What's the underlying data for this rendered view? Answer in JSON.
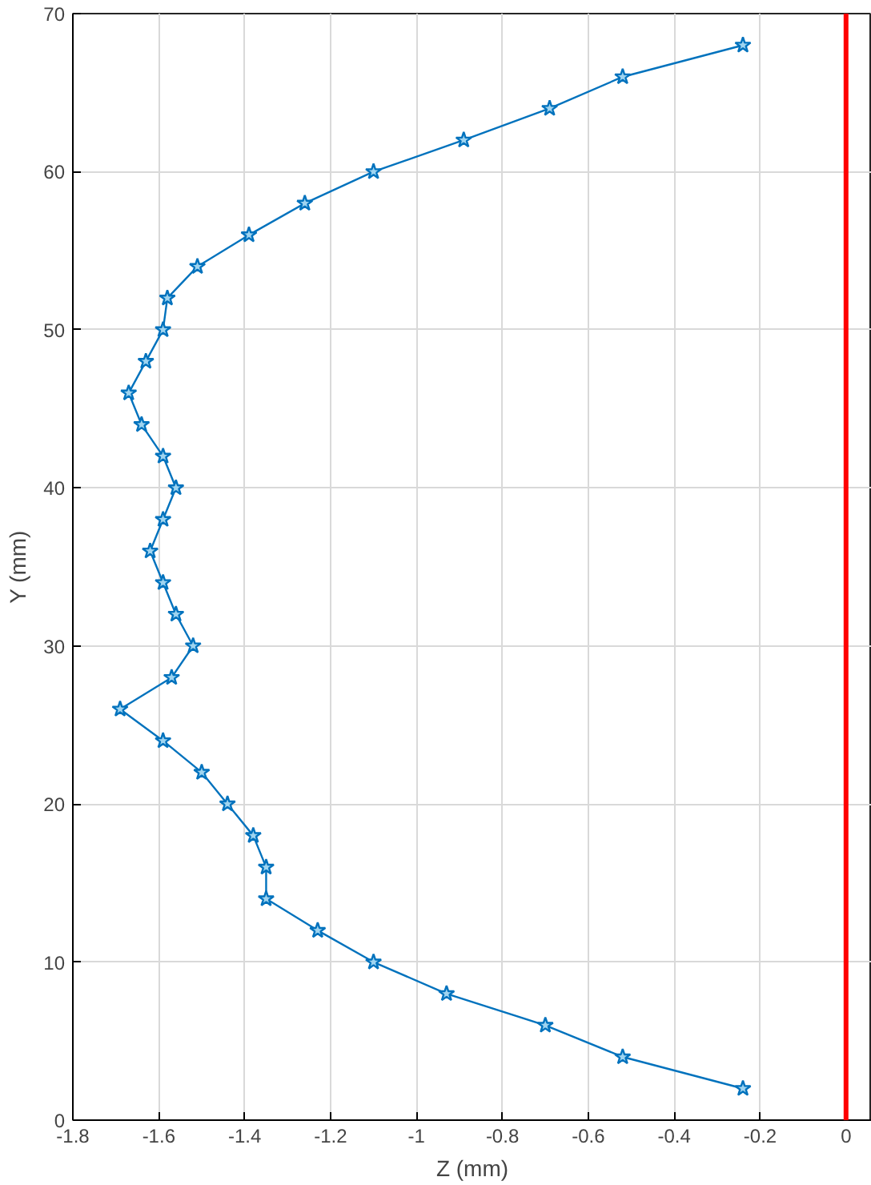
{
  "chart_data": {
    "type": "line",
    "xlabel": "Z (mm)",
    "ylabel": "Y (mm)",
    "xlim": [
      -1.8,
      0.06
    ],
    "ylim": [
      0,
      70
    ],
    "xticks": [
      -1.8,
      -1.6,
      -1.4,
      -1.2,
      {
        "value": -1,
        "label": "-1"
      },
      -0.8,
      -0.6,
      -0.4,
      -0.2,
      {
        "value": 0,
        "label": "0"
      }
    ],
    "yticks": [
      0,
      10,
      20,
      30,
      40,
      50,
      60,
      70
    ],
    "grid": true,
    "marker": "star",
    "line_style": "solid",
    "series": [
      {
        "color": "#0072bd",
        "x": [
          -0.24,
          -0.52,
          -0.7,
          -0.93,
          -1.1,
          -1.23,
          -1.35,
          -1.35,
          -1.38,
          -1.44,
          -1.5,
          -1.59,
          -1.69,
          -1.57,
          -1.52,
          -1.56,
          -1.59,
          -1.62,
          -1.59,
          -1.56,
          -1.59,
          -1.64,
          -1.67,
          -1.63,
          -1.59,
          -1.58,
          -1.51,
          -1.39,
          -1.26,
          -1.1,
          -0.89,
          -0.69,
          -0.52,
          -0.24
        ],
        "values": [
          2,
          4,
          6,
          8,
          10,
          12,
          14,
          16,
          18,
          20,
          22,
          24,
          26,
          28,
          30,
          32,
          34,
          36,
          38,
          40,
          42,
          44,
          46,
          48,
          50,
          52,
          54,
          56,
          58,
          60,
          62,
          64,
          66,
          68
        ]
      }
    ],
    "ref_lines": [
      {
        "axis": "x",
        "value": 0,
        "color": "#ff0000"
      }
    ]
  }
}
